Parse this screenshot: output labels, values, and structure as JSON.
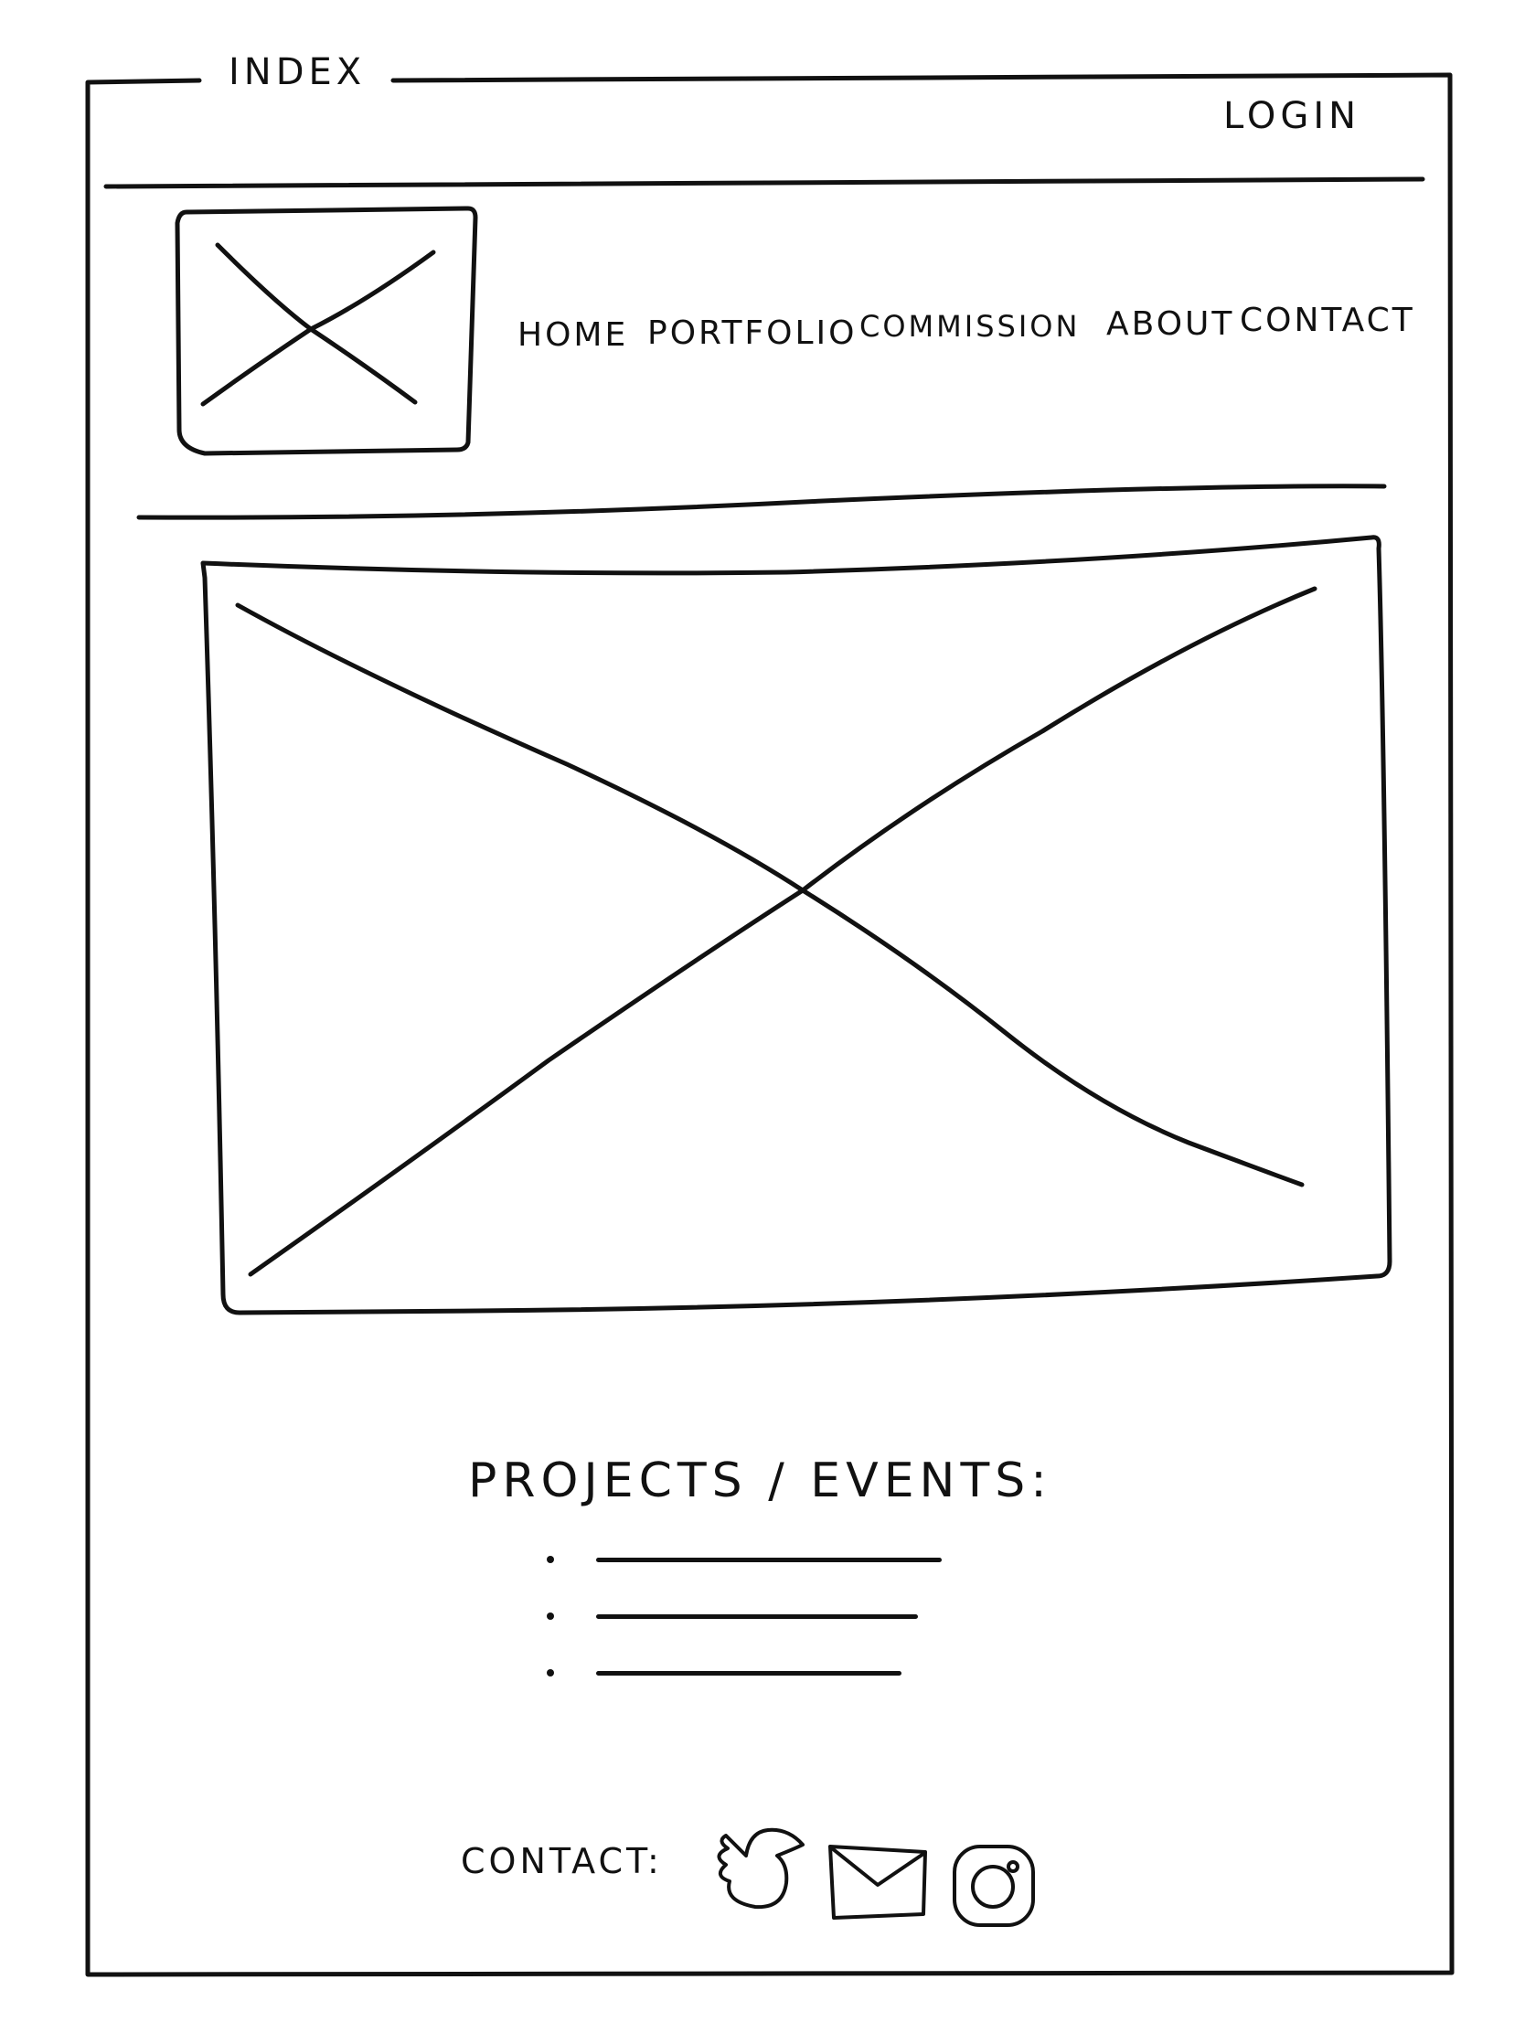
{
  "window": {
    "title": "INDEX"
  },
  "header": {
    "login_label": "LOGIN"
  },
  "logo": {
    "placeholder": "image-placeholder"
  },
  "nav": {
    "items": [
      {
        "label": "HOME"
      },
      {
        "label": "PORTFOLIO"
      },
      {
        "label": "COMMISSION"
      },
      {
        "label": "ABOUT"
      },
      {
        "label": "CONTACT"
      }
    ]
  },
  "hero": {
    "placeholder": "image-placeholder"
  },
  "projects": {
    "title": "PROJECTS / EVENTS:",
    "items": [
      {
        "placeholder_text_length": 0.86
      },
      {
        "placeholder_text_length": 0.8
      },
      {
        "placeholder_text_length": 0.76
      }
    ]
  },
  "footer": {
    "contact_label": "CONTACT:",
    "icons": [
      "bird-icon",
      "mail-icon",
      "instagram-icon"
    ]
  }
}
